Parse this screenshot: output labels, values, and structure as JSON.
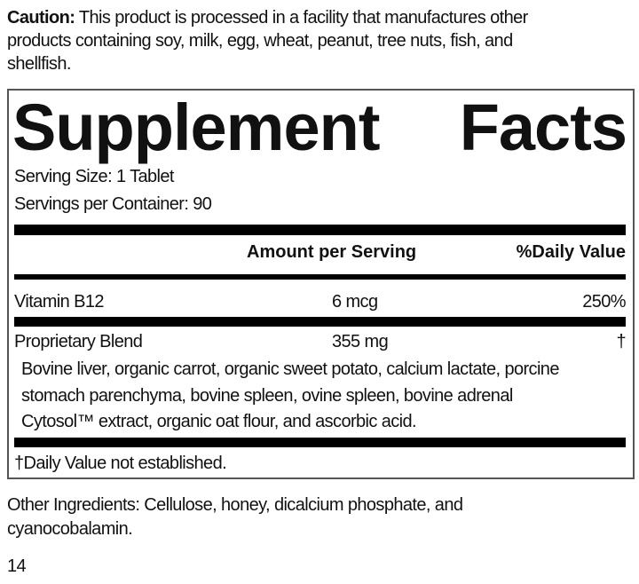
{
  "caution": {
    "label": "Caution:",
    "lines": [
      " This product is processed in a facility that manufactures other",
      "products containing soy, milk, egg, wheat, peanut, tree nuts, fish, and",
      "shellfish."
    ]
  },
  "facts": {
    "title_word1": "Supplement",
    "title_word2": "Facts",
    "serving_size": "Serving Size: 1 Tablet",
    "servings_per_container": "Servings per Container: 90",
    "header_amount": "Amount per Serving",
    "header_dv": "%Daily Value",
    "rows": [
      {
        "name": "Vitamin B12",
        "amount": "6 mcg",
        "dv": "250%"
      },
      {
        "name": "Proprietary Blend",
        "amount": "355 mg",
        "dv": "†"
      }
    ],
    "blend_lines": [
      "Bovine liver, organic carrot, organic sweet potato, calcium lactate, porcine",
      "stomach parenchyma, bovine spleen, ovine spleen, bovine adrenal",
      "Cytosol™ extract, organic oat flour, and ascorbic acid."
    ],
    "footnote": "†Daily Value not established."
  },
  "other_ingredients": [
    "Other Ingredients: Cellulose, honey, dicalcium phosphate, and",
    "cyanocobalamin."
  ],
  "page_number": "14"
}
